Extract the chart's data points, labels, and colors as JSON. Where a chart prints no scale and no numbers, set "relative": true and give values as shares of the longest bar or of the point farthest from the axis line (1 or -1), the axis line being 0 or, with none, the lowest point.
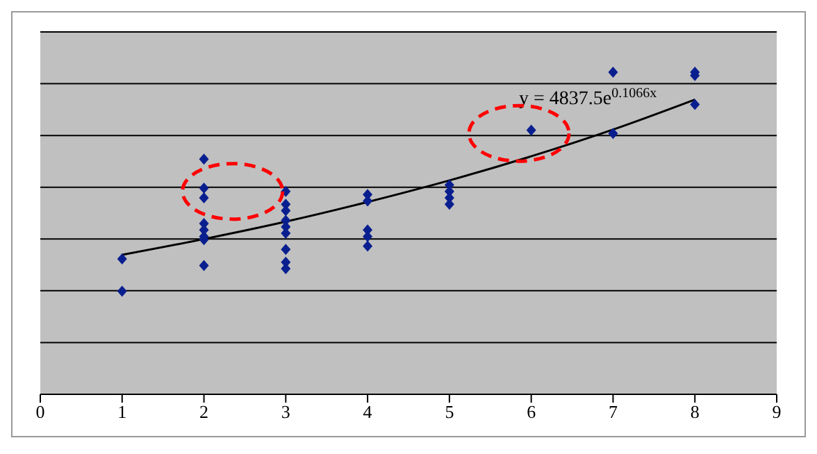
{
  "chart_data": {
    "type": "scatter",
    "relative": true,
    "xlim": [
      0,
      9
    ],
    "xticks": [
      0,
      1,
      2,
      3,
      4,
      5,
      6,
      7,
      8,
      9
    ],
    "grid": "y",
    "marker": "diamond",
    "annotations": [
      "y = 4837.5e$^{0.1066x}$"
    ],
    "series": [
      {
        "color": "#0a1f8f",
        "x": [
          1,
          1,
          2,
          2,
          2,
          2,
          2,
          2,
          2,
          2,
          3,
          3,
          3,
          3,
          3,
          3,
          3,
          3,
          3,
          4,
          4,
          4,
          4,
          4,
          5,
          5,
          5,
          5,
          6,
          7,
          7,
          8,
          8,
          8
        ],
        "values": [
          0.42,
          0.32,
          0.73,
          0.64,
          0.61,
          0.53,
          0.51,
          0.49,
          0.48,
          0.4,
          0.63,
          0.59,
          0.57,
          0.54,
          0.52,
          0.5,
          0.45,
          0.41,
          0.39,
          0.62,
          0.6,
          0.51,
          0.49,
          0.46,
          0.65,
          0.63,
          0.61,
          0.59,
          0.82,
          1.0,
          0.81,
          1.0,
          0.99,
          0.9
        ]
      },
      {
        "type": "line",
        "color": "#000000",
        "marker": "none",
        "x": [
          1,
          2,
          3,
          4,
          5,
          6,
          7,
          8
        ],
        "values": [
          0.433,
          0.482,
          0.536,
          0.597,
          0.664,
          0.739,
          0.822,
          0.915
        ]
      }
    ]
  }
}
